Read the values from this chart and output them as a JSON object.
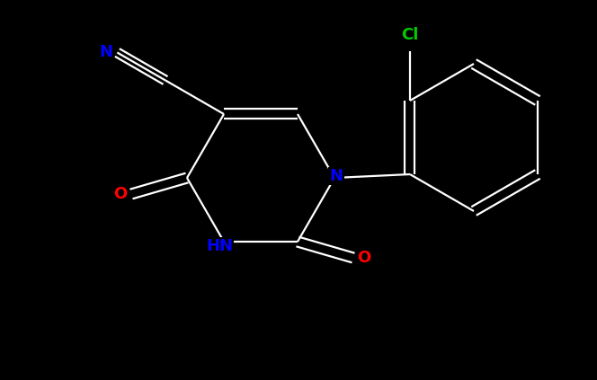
{
  "background_color": "#000000",
  "bond_color": "#ffffff",
  "atom_colors": {
    "N": "#0000ff",
    "O": "#ff0000",
    "Cl": "#00cc00",
    "C": "#ffffff"
  },
  "figsize": [
    6.64,
    4.23
  ],
  "dpi": 100,
  "xlim": [
    0,
    6.64
  ],
  "ylim": [
    0,
    4.23
  ]
}
